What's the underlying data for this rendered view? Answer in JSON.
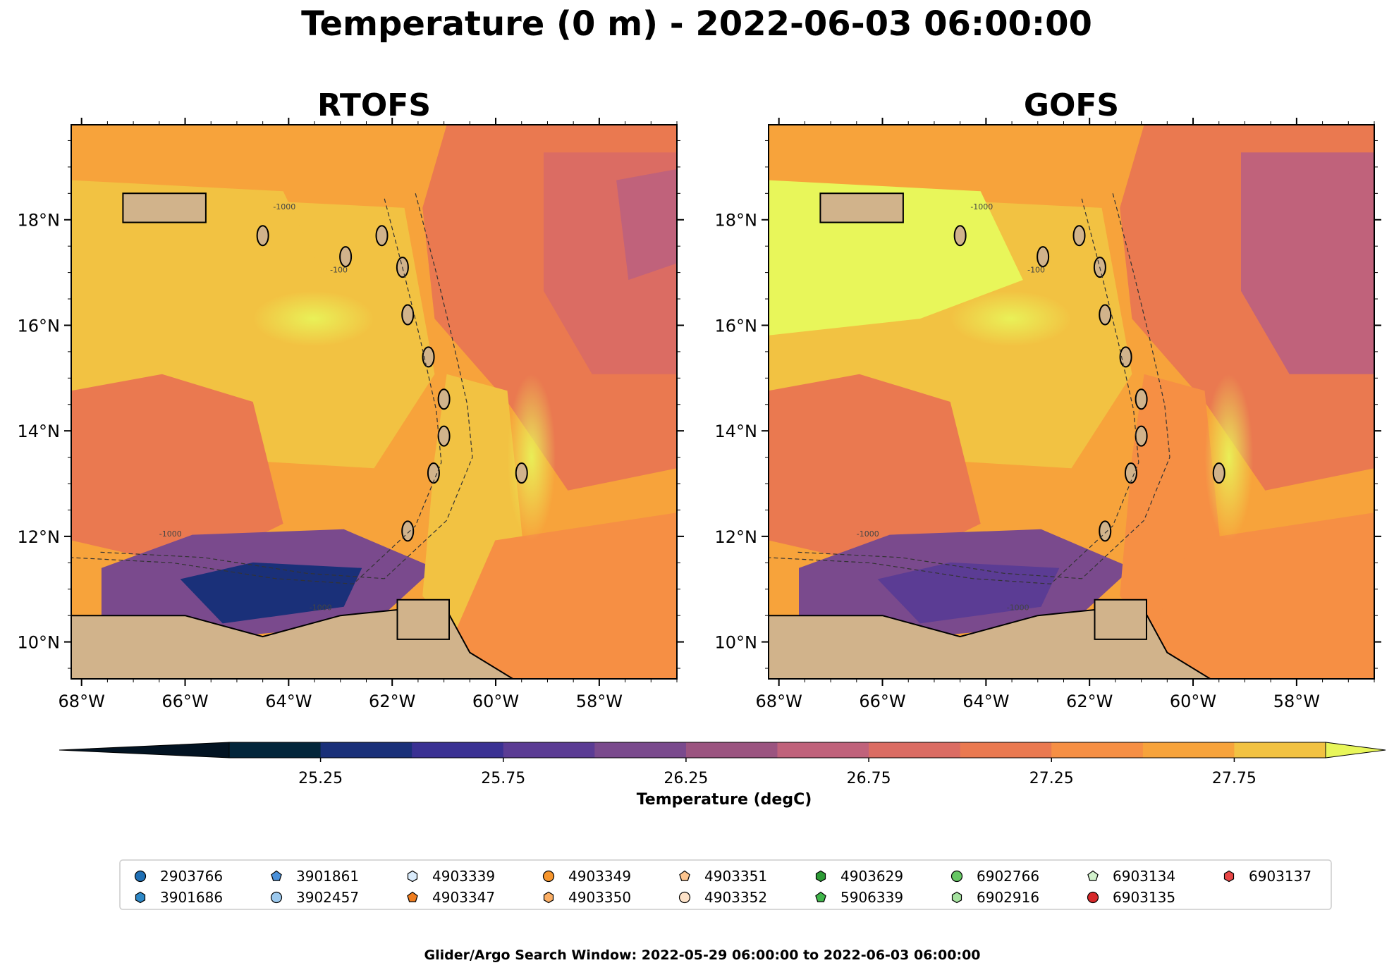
{
  "figure": {
    "title": "Temperature (0 m) - 2022-06-03 06:00:00",
    "footer": "Glider/Argo Search Window: 2022-05-29 06:00:00 to 2022-06-03 06:00:00"
  },
  "chart_data": [
    {
      "type": "heatmap",
      "title": "RTOFS",
      "x_range": [
        -68.2,
        -56.5
      ],
      "y_range": [
        9.3,
        19.8
      ],
      "x_ticks": [
        -68,
        -66,
        -64,
        -62,
        -60,
        -58
      ],
      "x_tick_labels": [
        "68°W",
        "66°W",
        "64°W",
        "62°W",
        "60°W",
        "58°W"
      ],
      "y_ticks": [
        10,
        12,
        14,
        16,
        18
      ],
      "y_tick_labels": [
        "10°N",
        "12°N",
        "14°N",
        "16°N",
        "18°N"
      ],
      "contour_labels": [
        "-1000",
        "-100"
      ]
    },
    {
      "type": "heatmap",
      "title": "GOFS",
      "x_range": [
        -68.2,
        -56.5
      ],
      "y_range": [
        9.3,
        19.8
      ],
      "x_ticks": [
        -68,
        -66,
        -64,
        -62,
        -60,
        -58
      ],
      "x_tick_labels": [
        "68°W",
        "66°W",
        "64°W",
        "62°W",
        "60°W",
        "58°W"
      ],
      "y_ticks": [
        10,
        12,
        14,
        16,
        18
      ],
      "y_tick_labels": [
        "10°N",
        "12°N",
        "14°N",
        "16°N",
        "18°N"
      ],
      "contour_labels": [
        "-1000",
        "-100"
      ]
    }
  ],
  "colorbar": {
    "label": "Temperature (degC)",
    "min": 25.0,
    "max": 28.0,
    "step": 0.25,
    "ticks": [
      25.25,
      25.75,
      26.25,
      26.75,
      27.25,
      27.75
    ],
    "tick_labels": [
      "25.25",
      "25.75",
      "26.25",
      "26.75",
      "27.25",
      "27.75"
    ],
    "colors": [
      "#03263b",
      "#1a3079",
      "#3a3193",
      "#5b3c94",
      "#7a4a8d",
      "#9b5480",
      "#c0627b",
      "#db6c63",
      "#ea7950",
      "#f68f44",
      "#f7a33b",
      "#f2c242"
    ],
    "extend_low_color": "#021322",
    "extend_high_color": "#e8f65a"
  },
  "land_color": "#d1b38b",
  "legend": {
    "entries": [
      {
        "label": "2903766",
        "marker": "circle",
        "color": "#1f6fb4"
      },
      {
        "label": "3901686",
        "marker": "hexagon",
        "color": "#2e88c6"
      },
      {
        "label": "3901861",
        "marker": "pentagon",
        "color": "#4a90d9"
      },
      {
        "label": "3902457",
        "marker": "circle",
        "color": "#9cc9ee"
      },
      {
        "label": "4903339",
        "marker": "hexagon",
        "color": "#d9ebfb"
      },
      {
        "label": "4903347",
        "marker": "pentagon",
        "color": "#ef7d1f"
      },
      {
        "label": "4903349",
        "marker": "circle",
        "color": "#f7962d"
      },
      {
        "label": "4903350",
        "marker": "hexagon",
        "color": "#fbae64"
      },
      {
        "label": "4903351",
        "marker": "pentagon",
        "color": "#fdc58f"
      },
      {
        "label": "4903352",
        "marker": "circle",
        "color": "#fde2c8"
      },
      {
        "label": "4903629",
        "marker": "hexagon",
        "color": "#2c9a35"
      },
      {
        "label": "5906339",
        "marker": "pentagon",
        "color": "#3fb54a"
      },
      {
        "label": "6902766",
        "marker": "circle",
        "color": "#66c764"
      },
      {
        "label": "6902916",
        "marker": "hexagon",
        "color": "#a5e29f"
      },
      {
        "label": "6903134",
        "marker": "pentagon",
        "color": "#d2f2cc"
      },
      {
        "label": "6903135",
        "marker": "circle",
        "color": "#d7282a"
      },
      {
        "label": "6903137",
        "marker": "hexagon",
        "color": "#e84646"
      }
    ]
  }
}
